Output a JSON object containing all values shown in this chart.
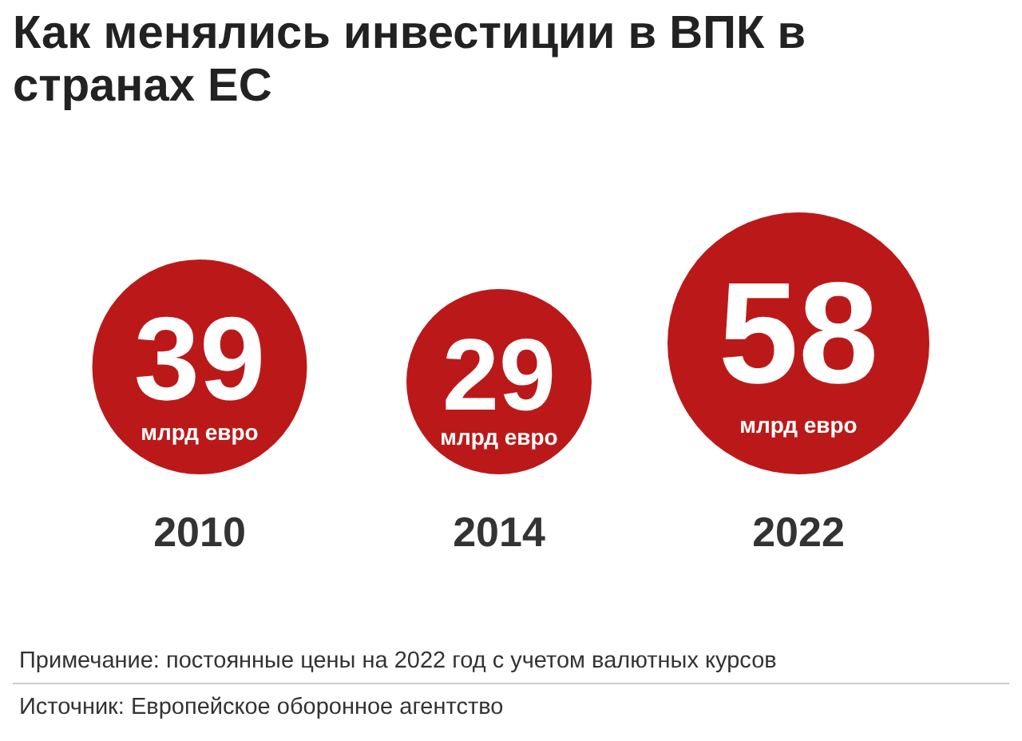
{
  "chart_data": {
    "type": "other",
    "title": "Как менялись инвестиции в ВПК в странах ЕС",
    "ylabel": "млрд евро",
    "categories": [
      "2010",
      "2014",
      "2022"
    ],
    "values": [
      39,
      29,
      58
    ],
    "color": "#bb1919",
    "data_labels": true,
    "annotations": [
      "Примечание: постоянные цены на 2022 год с учетом валютных курсов",
      "Источник: Европейское оборонное агентство"
    ]
  }
}
